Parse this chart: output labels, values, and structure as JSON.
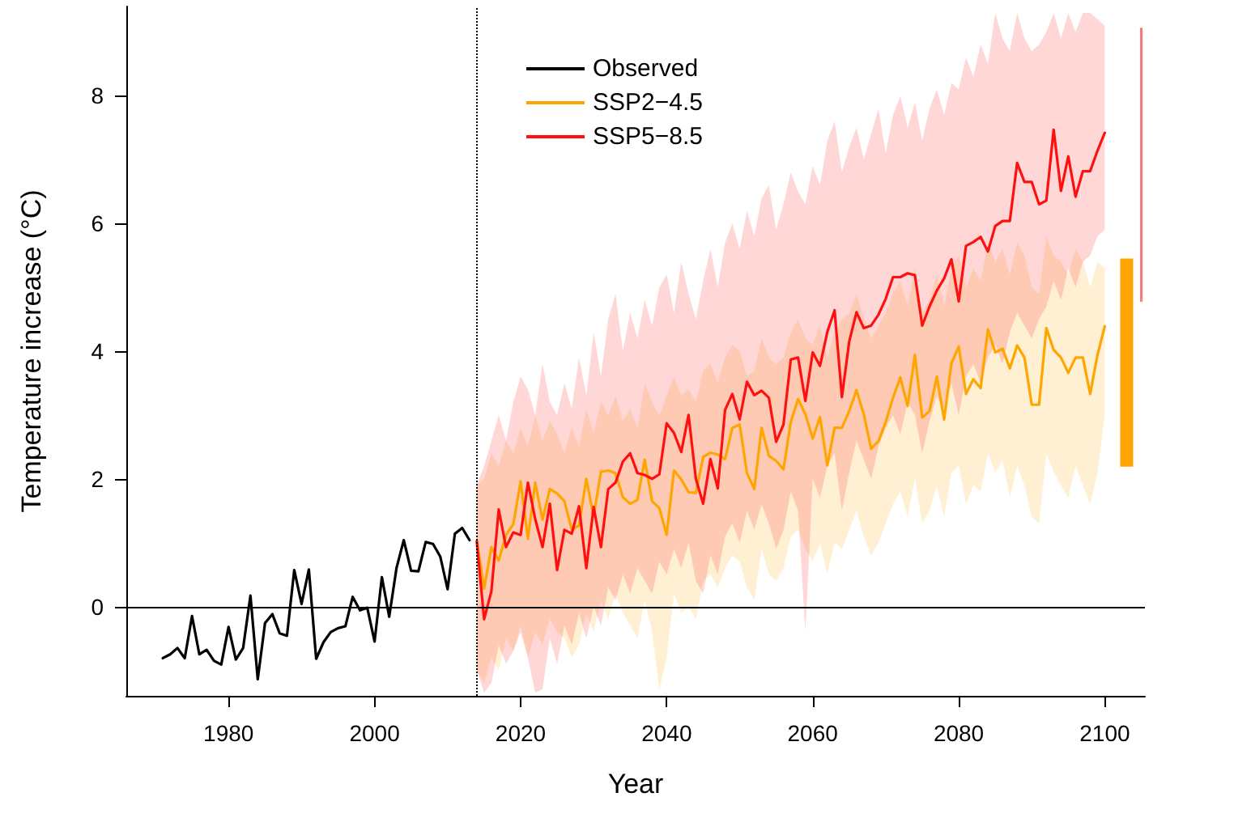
{
  "chart_data": {
    "type": "line",
    "xlabel": "Year",
    "ylabel": "Temperature increase (°C)",
    "xlim": [
      1966,
      2105.5
    ],
    "xticks": [
      1980,
      2000,
      2020,
      2040,
      2060,
      2080,
      2100
    ],
    "ylim": [
      -1.4,
      9.4
    ],
    "yticks": [
      0,
      2,
      4,
      6,
      8
    ],
    "grid": false,
    "legend": "top",
    "marker": "none",
    "line_style": "solid",
    "ref_lines": [
      {
        "axis": "y",
        "value": 0,
        "color": "#000000",
        "line_style": "solid"
      },
      {
        "axis": "x",
        "value": 2014,
        "color": "#000000",
        "line_style": "dotted"
      }
    ],
    "series": [
      {
        "name": "Observed",
        "color": "#000000",
        "x": [
          1971,
          1972,
          1973,
          1974,
          1975,
          1976,
          1977,
          1978,
          1979,
          1980,
          1981,
          1982,
          1983,
          1984,
          1985,
          1986,
          1987,
          1988,
          1989,
          1990,
          1991,
          1992,
          1993,
          1994,
          1995,
          1996,
          1997,
          1998,
          1999,
          2000,
          2001,
          2002,
          2003,
          2004,
          2005,
          2006,
          2007,
          2008,
          2009,
          2010,
          2011,
          2012,
          2013
        ],
        "values": [
          -0.81,
          -0.75,
          -0.65,
          -0.81,
          -0.15,
          -0.75,
          -0.68,
          -0.85,
          -0.91,
          -0.32,
          -0.83,
          -0.65,
          0.17,
          -1.14,
          -0.26,
          -0.12,
          -0.42,
          -0.46,
          0.57,
          0.04,
          0.58,
          -0.82,
          -0.56,
          -0.4,
          -0.34,
          -0.31,
          0.15,
          -0.06,
          -0.02,
          -0.55,
          0.46,
          -0.16,
          0.6,
          1.04,
          0.56,
          0.55,
          1.01,
          0.98,
          0.78,
          0.27,
          1.14,
          1.23,
          1.04
        ]
      },
      {
        "name": "SSP2−4.5",
        "color": "#ffa500",
        "x": [
          2014,
          2015,
          2016,
          2017,
          2018,
          2019,
          2020,
          2021,
          2022,
          2023,
          2024,
          2025,
          2026,
          2027,
          2028,
          2029,
          2030,
          2031,
          2032,
          2033,
          2034,
          2035,
          2036,
          2037,
          2038,
          2039,
          2040,
          2041,
          2042,
          2043,
          2044,
          2045,
          2046,
          2047,
          2048,
          2049,
          2050,
          2051,
          2052,
          2053,
          2054,
          2055,
          2056,
          2057,
          2058,
          2059,
          2060,
          2061,
          2062,
          2063,
          2064,
          2065,
          2066,
          2067,
          2068,
          2069,
          2070,
          2071,
          2072,
          2073,
          2074,
          2075,
          2076,
          2077,
          2078,
          2079,
          2080,
          2081,
          2082,
          2083,
          2084,
          2085,
          2086,
          2087,
          2088,
          2089,
          2090,
          2091,
          2092,
          2093,
          2094,
          2095,
          2096,
          2097,
          2098,
          2099,
          2100
        ],
        "values": [
          1.02,
          0.28,
          0.93,
          0.72,
          1.12,
          1.29,
          1.96,
          1.06,
          1.94,
          1.36,
          1.84,
          1.77,
          1.65,
          1.2,
          1.27,
          2.0,
          1.41,
          2.11,
          2.13,
          2.09,
          1.71,
          1.61,
          1.67,
          2.3,
          1.65,
          1.54,
          1.12,
          2.13,
          1.99,
          1.79,
          1.78,
          2.34,
          2.41,
          2.38,
          2.31,
          2.8,
          2.85,
          2.09,
          1.84,
          2.8,
          2.36,
          2.28,
          2.15,
          2.89,
          3.25,
          3.01,
          2.63,
          2.97,
          2.21,
          2.8,
          2.8,
          3.06,
          3.39,
          3.01,
          2.47,
          2.59,
          2.89,
          3.27,
          3.59,
          3.14,
          3.94,
          2.96,
          3.06,
          3.6,
          2.93,
          3.81,
          4.07,
          3.33,
          3.56,
          3.42,
          4.34,
          3.98,
          4.04,
          3.73,
          4.09,
          3.9,
          3.16,
          3.16,
          4.36,
          4.02,
          3.9,
          3.66,
          3.9,
          3.9,
          3.33,
          3.94,
          4.39
        ],
        "lower": [
          -1.0,
          -1.2,
          -0.8,
          -1.0,
          -0.5,
          -0.7,
          -0.3,
          -0.8,
          -0.4,
          -0.6,
          -0.2,
          -0.4,
          -0.5,
          -0.8,
          -0.6,
          -0.1,
          -0.4,
          0.1,
          -0.2,
          0.2,
          -0.1,
          -0.3,
          -0.5,
          0.1,
          -0.4,
          -1.3,
          -0.8,
          0.2,
          -0.1,
          0.0,
          -0.2,
          0.4,
          0.5,
          0.3,
          0.6,
          0.8,
          0.7,
          0.3,
          0.1,
          0.9,
          0.5,
          0.4,
          0.6,
          1.1,
          1.2,
          0.9,
          0.7,
          1.0,
          0.5,
          1.0,
          0.9,
          1.2,
          1.5,
          1.1,
          0.8,
          1.0,
          1.3,
          1.6,
          1.8,
          1.4,
          2.0,
          1.3,
          1.5,
          1.9,
          1.4,
          2.1,
          2.2,
          1.6,
          1.9,
          1.8,
          2.4,
          2.1,
          2.3,
          1.7,
          2.2,
          1.9,
          1.4,
          1.3,
          2.4,
          2.1,
          1.9,
          1.7,
          2.2,
          1.9,
          1.6,
          2.1,
          3.0
        ],
        "upper": [
          1.9,
          2.0,
          2.4,
          2.2,
          2.6,
          2.4,
          2.8,
          2.5,
          3.0,
          2.6,
          2.9,
          2.7,
          2.4,
          2.8,
          2.5,
          3.1,
          2.7,
          3.2,
          3.0,
          3.3,
          2.9,
          3.1,
          2.8,
          3.5,
          3.2,
          3.0,
          3.3,
          3.6,
          3.3,
          3.4,
          3.2,
          3.7,
          3.8,
          3.5,
          3.9,
          4.1,
          4.0,
          3.6,
          3.7,
          4.2,
          3.9,
          3.8,
          3.9,
          4.3,
          4.5,
          4.2,
          4.1,
          4.4,
          3.9,
          4.3,
          4.5,
          4.6,
          4.9,
          4.5,
          4.2,
          4.4,
          4.6,
          4.9,
          5.1,
          4.7,
          5.3,
          4.6,
          4.8,
          5.2,
          4.7,
          5.3,
          5.5,
          5.0,
          5.3,
          5.1,
          5.7,
          5.4,
          5.6,
          5.2,
          5.7,
          5.5,
          5.0,
          4.9,
          5.8,
          5.5,
          5.4,
          5.2,
          5.6,
          5.4,
          5.0,
          5.4,
          5.3
        ]
      },
      {
        "name": "SSP5−8.5",
        "color": "#ff1010",
        "x": [
          2014,
          2015,
          2016,
          2017,
          2018,
          2019,
          2020,
          2021,
          2022,
          2023,
          2024,
          2025,
          2026,
          2027,
          2028,
          2029,
          2030,
          2031,
          2032,
          2033,
          2034,
          2035,
          2036,
          2037,
          2038,
          2039,
          2040,
          2041,
          2042,
          2043,
          2044,
          2045,
          2046,
          2047,
          2048,
          2049,
          2050,
          2051,
          2052,
          2053,
          2054,
          2055,
          2056,
          2057,
          2058,
          2059,
          2060,
          2061,
          2062,
          2063,
          2064,
          2065,
          2066,
          2067,
          2068,
          2069,
          2070,
          2071,
          2072,
          2073,
          2074,
          2075,
          2076,
          2077,
          2078,
          2079,
          2080,
          2081,
          2082,
          2083,
          2084,
          2085,
          2086,
          2087,
          2088,
          2089,
          2090,
          2091,
          2092,
          2093,
          2094,
          2095,
          2096,
          2097,
          2098,
          2099,
          2100
        ],
        "values": [
          1.02,
          -0.2,
          0.24,
          1.52,
          0.93,
          1.16,
          1.12,
          1.94,
          1.37,
          0.93,
          1.61,
          0.57,
          1.2,
          1.14,
          1.57,
          0.6,
          1.56,
          0.93,
          1.84,
          1.94,
          2.27,
          2.4,
          2.09,
          2.06,
          2.0,
          2.07,
          2.87,
          2.72,
          2.42,
          3.0,
          2.0,
          1.61,
          2.31,
          1.85,
          3.08,
          3.33,
          2.93,
          3.52,
          3.31,
          3.38,
          3.27,
          2.58,
          2.85,
          3.87,
          3.9,
          3.22,
          3.98,
          3.77,
          4.3,
          4.64,
          3.28,
          4.15,
          4.61,
          4.36,
          4.4,
          4.57,
          4.82,
          5.16,
          5.16,
          5.22,
          5.19,
          4.4,
          4.7,
          4.95,
          5.14,
          5.44,
          4.78,
          5.65,
          5.71,
          5.79,
          5.56,
          5.96,
          6.04,
          6.04,
          6.95,
          6.65,
          6.65,
          6.3,
          6.36,
          7.47,
          6.51,
          7.05,
          6.42,
          6.82,
          6.82,
          7.14,
          7.42
        ],
        "lower": [
          -1.0,
          -1.35,
          -1.2,
          -0.6,
          -0.9,
          -0.7,
          -0.4,
          -0.8,
          -1.35,
          -1.3,
          -0.5,
          -0.9,
          -0.3,
          -0.6,
          -0.1,
          -0.5,
          0.0,
          -0.3,
          0.3,
          0.1,
          0.5,
          0.2,
          0.6,
          0.4,
          0.2,
          0.7,
          0.5,
          0.9,
          0.6,
          1.0,
          0.4,
          0.2,
          0.8,
          0.5,
          1.1,
          1.3,
          1.0,
          1.5,
          1.2,
          1.6,
          1.3,
          0.9,
          1.2,
          1.8,
          1.5,
          -0.4,
          2.0,
          1.7,
          2.2,
          2.4,
          1.5,
          2.1,
          2.6,
          2.3,
          2.0,
          2.5,
          2.8,
          3.0,
          2.7,
          3.2,
          3.0,
          2.4,
          2.9,
          3.3,
          3.1,
          3.5,
          3.0,
          3.6,
          3.8,
          3.5,
          3.9,
          4.1,
          3.8,
          4.3,
          4.6,
          4.4,
          4.2,
          4.5,
          4.7,
          5.1,
          4.8,
          5.3,
          5.0,
          5.4,
          5.5,
          5.8,
          5.9
        ],
        "upper": [
          1.9,
          2.2,
          2.6,
          3.0,
          2.6,
          3.2,
          3.6,
          3.4,
          3.0,
          3.8,
          3.2,
          3.0,
          3.5,
          3.1,
          3.9,
          3.3,
          4.3,
          3.6,
          4.5,
          4.9,
          4.0,
          4.6,
          4.2,
          4.8,
          4.4,
          5.0,
          5.2,
          4.6,
          5.4,
          4.9,
          4.5,
          5.1,
          5.6,
          5.0,
          5.7,
          6.0,
          5.6,
          6.2,
          5.8,
          6.4,
          6.6,
          5.9,
          6.3,
          6.8,
          6.5,
          6.3,
          6.9,
          6.6,
          7.3,
          7.6,
          6.8,
          7.2,
          7.5,
          7.0,
          7.4,
          7.8,
          7.1,
          7.7,
          8.0,
          7.5,
          7.9,
          7.3,
          7.8,
          8.1,
          7.7,
          8.2,
          8.1,
          8.6,
          8.3,
          8.8,
          8.5,
          9.3,
          8.9,
          8.7,
          9.3,
          8.9,
          8.7,
          8.8,
          9.0,
          9.3,
          8.9,
          9.3,
          9.0,
          9.3,
          9.3,
          9.2,
          9.1
        ]
      },
      {
        "type": "bar",
        "color": "#ffa500",
        "x": [
          2103
        ],
        "base": [
          2.19
        ],
        "values": [
          3.26
        ]
      },
      {
        "type": "line",
        "color": "#f47c7c",
        "x": [
          2105,
          2105
        ],
        "values": [
          4.79,
          9.05
        ]
      }
    ]
  }
}
